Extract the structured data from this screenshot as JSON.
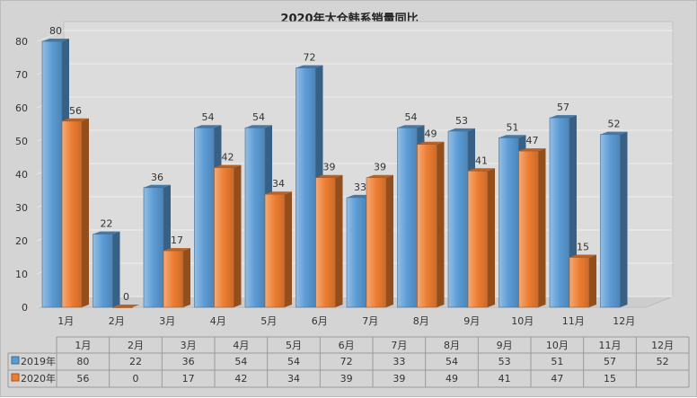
{
  "chart_data": {
    "type": "bar",
    "title": "2020年太仓韩系销量同比",
    "categories": [
      "1月",
      "2月",
      "3月",
      "4月",
      "5月",
      "6月",
      "7月",
      "8月",
      "9月",
      "10月",
      "11月",
      "12月"
    ],
    "series": [
      {
        "name": "2019年",
        "color": "#5b9bd5",
        "values": [
          80,
          22,
          36,
          54,
          54,
          72,
          33,
          54,
          53,
          51,
          57,
          52
        ]
      },
      {
        "name": "2020年",
        "color": "#ed7d31",
        "values": [
          56,
          0,
          17,
          42,
          34,
          39,
          39,
          49,
          41,
          47,
          15,
          null
        ]
      }
    ],
    "ylim": [
      0,
      80
    ],
    "yticks": [
      0,
      10,
      20,
      30,
      40,
      50,
      60,
      70,
      80
    ],
    "grid": true,
    "data_table": true,
    "three_d": true
  }
}
